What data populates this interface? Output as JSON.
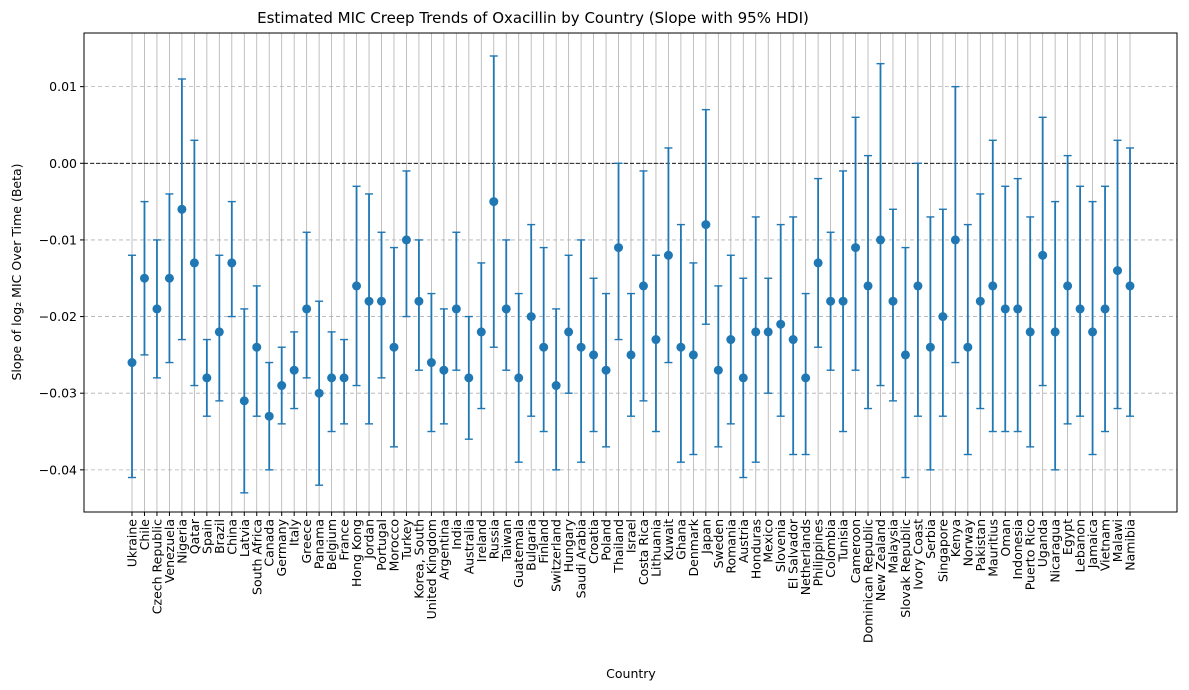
{
  "chart_data": {
    "type": "scatter",
    "title": "Estimated MIC Creep Trends of Oxacillin by Country (Slope with 95% HDI)",
    "xlabel": "Country",
    "ylabel": "Slope of log₂ MIC Over Time (Beta)",
    "ylim": [
      -0.0455,
      0.017
    ],
    "yticks": [
      -0.04,
      -0.03,
      -0.02,
      -0.01,
      0.0,
      0.01
    ],
    "ytick_labels": [
      "−0.04",
      "−0.03",
      "−0.02",
      "−0.01",
      "0.00",
      "0.01"
    ],
    "reference_line": 0.0,
    "grid": "both",
    "series_color": "#1f77b4",
    "points": [
      {
        "country": "Ukraine",
        "mean": -0.026,
        "lower": -0.041,
        "upper": -0.012
      },
      {
        "country": "Chile",
        "mean": -0.015,
        "lower": -0.025,
        "upper": -0.005
      },
      {
        "country": "Czech Republic",
        "mean": -0.019,
        "lower": -0.028,
        "upper": -0.01
      },
      {
        "country": "Venezuela",
        "mean": -0.015,
        "lower": -0.026,
        "upper": -0.004
      },
      {
        "country": "Nigeria",
        "mean": -0.006,
        "lower": -0.023,
        "upper": 0.011
      },
      {
        "country": "Qatar",
        "mean": -0.013,
        "lower": -0.029,
        "upper": 0.003
      },
      {
        "country": "Spain",
        "mean": -0.028,
        "lower": -0.033,
        "upper": -0.023
      },
      {
        "country": "Brazil",
        "mean": -0.022,
        "lower": -0.031,
        "upper": -0.012
      },
      {
        "country": "China",
        "mean": -0.013,
        "lower": -0.02,
        "upper": -0.005
      },
      {
        "country": "Latvia",
        "mean": -0.031,
        "lower": -0.043,
        "upper": -0.019
      },
      {
        "country": "South Africa",
        "mean": -0.024,
        "lower": -0.033,
        "upper": -0.016
      },
      {
        "country": "Canada",
        "mean": -0.033,
        "lower": -0.04,
        "upper": -0.026
      },
      {
        "country": "Germany",
        "mean": -0.029,
        "lower": -0.034,
        "upper": -0.024
      },
      {
        "country": "Italy",
        "mean": -0.027,
        "lower": -0.032,
        "upper": -0.022
      },
      {
        "country": "Greece",
        "mean": -0.019,
        "lower": -0.028,
        "upper": -0.009
      },
      {
        "country": "Panama",
        "mean": -0.03,
        "lower": -0.042,
        "upper": -0.018
      },
      {
        "country": "Belgium",
        "mean": -0.028,
        "lower": -0.035,
        "upper": -0.022
      },
      {
        "country": "France",
        "mean": -0.028,
        "lower": -0.034,
        "upper": -0.023
      },
      {
        "country": "Hong Kong",
        "mean": -0.016,
        "lower": -0.029,
        "upper": -0.003
      },
      {
        "country": "Jordan",
        "mean": -0.018,
        "lower": -0.034,
        "upper": -0.004
      },
      {
        "country": "Portugal",
        "mean": -0.018,
        "lower": -0.028,
        "upper": -0.009
      },
      {
        "country": "Morocco",
        "mean": -0.024,
        "lower": -0.037,
        "upper": -0.011
      },
      {
        "country": "Turkey",
        "mean": -0.01,
        "lower": -0.02,
        "upper": -0.001
      },
      {
        "country": "Korea, South",
        "mean": -0.018,
        "lower": -0.027,
        "upper": -0.01
      },
      {
        "country": "United Kingdom",
        "mean": -0.026,
        "lower": -0.035,
        "upper": -0.017
      },
      {
        "country": "Argentina",
        "mean": -0.027,
        "lower": -0.034,
        "upper": -0.019
      },
      {
        "country": "India",
        "mean": -0.019,
        "lower": -0.027,
        "upper": -0.009
      },
      {
        "country": "Australia",
        "mean": -0.028,
        "lower": -0.036,
        "upper": -0.02
      },
      {
        "country": "Ireland",
        "mean": -0.022,
        "lower": -0.032,
        "upper": -0.013
      },
      {
        "country": "Russia",
        "mean": -0.005,
        "lower": -0.024,
        "upper": 0.014
      },
      {
        "country": "Taiwan",
        "mean": -0.019,
        "lower": -0.027,
        "upper": -0.01
      },
      {
        "country": "Guatemala",
        "mean": -0.028,
        "lower": -0.039,
        "upper": -0.017
      },
      {
        "country": "Bulgaria",
        "mean": -0.02,
        "lower": -0.033,
        "upper": -0.008
      },
      {
        "country": "Finland",
        "mean": -0.024,
        "lower": -0.035,
        "upper": -0.011
      },
      {
        "country": "Switzerland",
        "mean": -0.029,
        "lower": -0.04,
        "upper": -0.019
      },
      {
        "country": "Hungary",
        "mean": -0.022,
        "lower": -0.03,
        "upper": -0.012
      },
      {
        "country": "Saudi Arabia",
        "mean": -0.024,
        "lower": -0.039,
        "upper": -0.01
      },
      {
        "country": "Croatia",
        "mean": -0.025,
        "lower": -0.035,
        "upper": -0.015
      },
      {
        "country": "Poland",
        "mean": -0.027,
        "lower": -0.037,
        "upper": -0.017
      },
      {
        "country": "Thailand",
        "mean": -0.011,
        "lower": -0.023,
        "upper": 0.0
      },
      {
        "country": "Israel",
        "mean": -0.025,
        "lower": -0.033,
        "upper": -0.017
      },
      {
        "country": "Costa Rica",
        "mean": -0.016,
        "lower": -0.031,
        "upper": -0.001
      },
      {
        "country": "Lithuania",
        "mean": -0.023,
        "lower": -0.035,
        "upper": -0.012
      },
      {
        "country": "Kuwait",
        "mean": -0.012,
        "lower": -0.026,
        "upper": 0.002
      },
      {
        "country": "Ghana",
        "mean": -0.024,
        "lower": -0.039,
        "upper": -0.008
      },
      {
        "country": "Denmark",
        "mean": -0.025,
        "lower": -0.038,
        "upper": -0.013
      },
      {
        "country": "Japan",
        "mean": -0.008,
        "lower": -0.021,
        "upper": 0.007
      },
      {
        "country": "Sweden",
        "mean": -0.027,
        "lower": -0.037,
        "upper": -0.016
      },
      {
        "country": "Romania",
        "mean": -0.023,
        "lower": -0.034,
        "upper": -0.012
      },
      {
        "country": "Austria",
        "mean": -0.028,
        "lower": -0.041,
        "upper": -0.015
      },
      {
        "country": "Honduras",
        "mean": -0.022,
        "lower": -0.039,
        "upper": -0.007
      },
      {
        "country": "Mexico",
        "mean": -0.022,
        "lower": -0.03,
        "upper": -0.015
      },
      {
        "country": "Slovenia",
        "mean": -0.021,
        "lower": -0.033,
        "upper": -0.008
      },
      {
        "country": "El Salvador",
        "mean": -0.023,
        "lower": -0.038,
        "upper": -0.007
      },
      {
        "country": "Netherlands",
        "mean": -0.028,
        "lower": -0.038,
        "upper": -0.017
      },
      {
        "country": "Philippines",
        "mean": -0.013,
        "lower": -0.024,
        "upper": -0.002
      },
      {
        "country": "Colombia",
        "mean": -0.018,
        "lower": -0.027,
        "upper": -0.009
      },
      {
        "country": "Tunisia",
        "mean": -0.018,
        "lower": -0.035,
        "upper": -0.001
      },
      {
        "country": "Cameroon",
        "mean": -0.011,
        "lower": -0.027,
        "upper": 0.006
      },
      {
        "country": "Dominican Republic",
        "mean": -0.016,
        "lower": -0.032,
        "upper": 0.001
      },
      {
        "country": "New Zealand",
        "mean": -0.01,
        "lower": -0.029,
        "upper": 0.013
      },
      {
        "country": "Malaysia",
        "mean": -0.018,
        "lower": -0.031,
        "upper": -0.006
      },
      {
        "country": "Slovak Republic",
        "mean": -0.025,
        "lower": -0.041,
        "upper": -0.011
      },
      {
        "country": "Ivory Coast",
        "mean": -0.016,
        "lower": -0.033,
        "upper": 0.0
      },
      {
        "country": "Serbia",
        "mean": -0.024,
        "lower": -0.04,
        "upper": -0.007
      },
      {
        "country": "Singapore",
        "mean": -0.02,
        "lower": -0.033,
        "upper": -0.006
      },
      {
        "country": "Kenya",
        "mean": -0.01,
        "lower": -0.026,
        "upper": 0.01
      },
      {
        "country": "Norway",
        "mean": -0.024,
        "lower": -0.038,
        "upper": -0.008
      },
      {
        "country": "Pakistan",
        "mean": -0.018,
        "lower": -0.032,
        "upper": -0.004
      },
      {
        "country": "Mauritius",
        "mean": -0.016,
        "lower": -0.035,
        "upper": 0.003
      },
      {
        "country": "Oman",
        "mean": -0.019,
        "lower": -0.035,
        "upper": -0.003
      },
      {
        "country": "Indonesia",
        "mean": -0.019,
        "lower": -0.035,
        "upper": -0.002
      },
      {
        "country": "Puerto Rico",
        "mean": -0.022,
        "lower": -0.037,
        "upper": -0.007
      },
      {
        "country": "Uganda",
        "mean": -0.012,
        "lower": -0.029,
        "upper": 0.006
      },
      {
        "country": "Nicaragua",
        "mean": -0.022,
        "lower": -0.04,
        "upper": -0.005
      },
      {
        "country": "Egypt",
        "mean": -0.016,
        "lower": -0.034,
        "upper": 0.001
      },
      {
        "country": "Lebanon",
        "mean": -0.019,
        "lower": -0.033,
        "upper": -0.003
      },
      {
        "country": "Jamaica",
        "mean": -0.022,
        "lower": -0.038,
        "upper": -0.005
      },
      {
        "country": "Vietnam",
        "mean": -0.019,
        "lower": -0.035,
        "upper": -0.003
      },
      {
        "country": "Malawi",
        "mean": -0.014,
        "lower": -0.032,
        "upper": 0.003
      },
      {
        "country": "Namibia",
        "mean": -0.016,
        "lower": -0.033,
        "upper": 0.002
      }
    ]
  }
}
